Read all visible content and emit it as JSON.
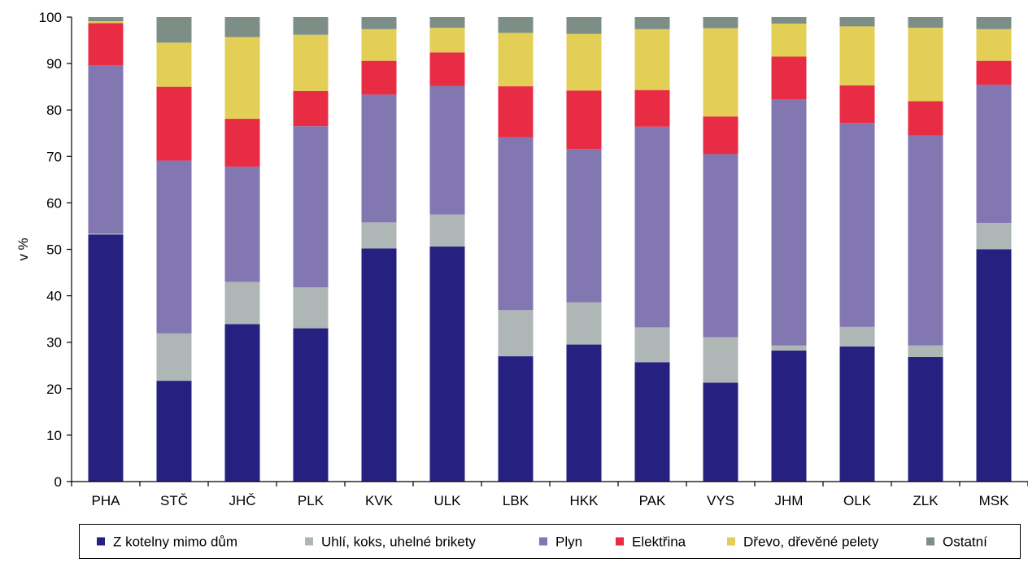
{
  "chart_data": {
    "type": "bar",
    "stacked": true,
    "title": "",
    "xlabel": "",
    "ylabel": "v %",
    "ylim": [
      0,
      100
    ],
    "yticks": [
      0,
      10,
      20,
      30,
      40,
      50,
      60,
      70,
      80,
      90,
      100
    ],
    "grid": false,
    "legend_position": "bottom",
    "categories": [
      "PHA",
      "STČ",
      "JHČ",
      "PLK",
      "KVK",
      "ULK",
      "LBK",
      "HKK",
      "PAK",
      "VYS",
      "JHM",
      "OLK",
      "ZLK",
      "MSK"
    ],
    "series": [
      {
        "name": "Z kotelny mimo dům",
        "color": "#262080",
        "values": [
          53.2,
          21.7,
          33.9,
          33.0,
          50.2,
          50.6,
          27.0,
          29.5,
          25.7,
          21.3,
          28.2,
          29.1,
          26.8,
          50.0
        ]
      },
      {
        "name": "Uhlí, koks, uhelné brikety",
        "color": "#aeb7b6",
        "values": [
          0.2,
          10.2,
          9.1,
          8.8,
          5.6,
          6.9,
          9.9,
          9.1,
          7.5,
          9.8,
          1.1,
          4.2,
          2.5,
          5.7
        ]
      },
      {
        "name": "Plyn",
        "color": "#8277b1",
        "values": [
          36.2,
          37.2,
          24.8,
          34.7,
          27.5,
          27.7,
          37.2,
          33.0,
          43.2,
          39.4,
          53.0,
          43.9,
          45.2,
          29.7
        ]
      },
      {
        "name": "Elektřina",
        "color": "#e82c44",
        "values": [
          9.1,
          15.9,
          10.3,
          7.6,
          7.3,
          7.2,
          11.0,
          12.6,
          7.9,
          8.1,
          9.2,
          8.1,
          7.4,
          5.2
        ]
      },
      {
        "name": "Dřevo, dřevěné pelety",
        "color": "#e3cf56",
        "values": [
          0.4,
          9.5,
          17.6,
          12.1,
          6.8,
          5.3,
          11.5,
          12.2,
          13.1,
          19.0,
          7.1,
          12.7,
          15.8,
          6.8
        ]
      },
      {
        "name": "Ostatní",
        "color": "#7d8e87",
        "values": [
          0.9,
          5.5,
          4.3,
          3.8,
          2.6,
          2.3,
          3.4,
          3.6,
          2.6,
          2.4,
          1.4,
          2.0,
          2.3,
          2.6
        ]
      }
    ]
  }
}
